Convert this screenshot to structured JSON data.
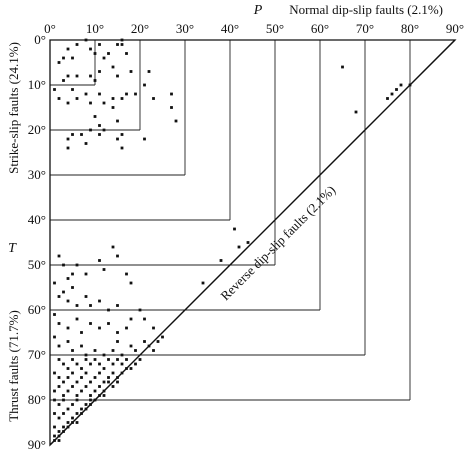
{
  "chart_data": {
    "type": "scatter",
    "x_axis": {
      "label": "P",
      "range": [
        0,
        90
      ],
      "ticks": [
        "0°",
        "10°",
        "20°",
        "30°",
        "40°",
        "50°",
        "60°",
        "70°",
        "80°",
        "90°"
      ]
    },
    "y_axis": {
      "label": "T",
      "range": [
        0,
        90
      ],
      "ticks": [
        "0°",
        "10°",
        "20°",
        "30°",
        "40°",
        "50°",
        "60°",
        "70°",
        "80°",
        "90°"
      ]
    },
    "grid": true,
    "region_labels": {
      "normal": "Normal dip-slip faults (2.1%)",
      "strike_slip": "Strike-slip faults (24.1%)",
      "thrust": "Thrust faults (71.7%)",
      "reverse": "Reverse dip-slip faults (2.1%)"
    },
    "marker_color": "#111111",
    "points": [
      [
        2,
        5
      ],
      [
        3,
        4
      ],
      [
        4,
        2
      ],
      [
        5,
        4
      ],
      [
        6,
        1
      ],
      [
        8,
        0
      ],
      [
        9,
        2
      ],
      [
        10,
        3
      ],
      [
        11,
        1
      ],
      [
        12,
        4
      ],
      [
        13,
        3
      ],
      [
        15,
        1
      ],
      [
        16,
        1
      ],
      [
        17,
        3
      ],
      [
        16,
        0
      ],
      [
        4,
        8
      ],
      [
        3,
        9
      ],
      [
        5,
        11
      ],
      [
        6,
        8
      ],
      [
        9,
        8
      ],
      [
        10,
        9
      ],
      [
        11,
        7
      ],
      [
        14,
        6
      ],
      [
        15,
        8
      ],
      [
        18,
        7
      ],
      [
        22,
        7
      ],
      [
        21,
        10
      ],
      [
        1,
        11
      ],
      [
        2,
        13
      ],
      [
        4,
        14
      ],
      [
        6,
        13
      ],
      [
        8,
        12
      ],
      [
        9,
        14
      ],
      [
        11,
        12
      ],
      [
        12,
        14
      ],
      [
        14,
        13
      ],
      [
        16,
        13
      ],
      [
        17,
        12
      ],
      [
        19,
        12
      ],
      [
        23,
        13
      ],
      [
        27,
        12
      ],
      [
        27,
        15
      ],
      [
        28,
        18
      ],
      [
        14,
        15
      ],
      [
        10,
        17
      ],
      [
        11,
        19
      ],
      [
        15,
        18
      ],
      [
        12,
        20
      ],
      [
        4,
        22
      ],
      [
        5,
        21
      ],
      [
        7,
        21
      ],
      [
        4,
        24
      ],
      [
        8,
        23
      ],
      [
        9,
        20
      ],
      [
        11,
        21
      ],
      [
        15,
        22
      ],
      [
        16,
        21
      ],
      [
        21,
        22
      ],
      [
        16,
        24
      ],
      [
        65,
        6
      ],
      [
        68,
        16
      ],
      [
        75,
        13
      ],
      [
        76,
        12
      ],
      [
        77,
        11
      ],
      [
        78,
        10
      ],
      [
        80,
        10
      ],
      [
        41,
        42
      ],
      [
        44,
        45
      ],
      [
        42,
        46
      ],
      [
        38,
        49
      ],
      [
        34,
        54
      ],
      [
        2,
        48
      ],
      [
        3,
        50
      ],
      [
        5,
        52
      ],
      [
        4,
        53
      ],
      [
        1,
        54
      ],
      [
        3,
        56
      ],
      [
        5,
        55
      ],
      [
        6,
        50
      ],
      [
        8,
        52
      ],
      [
        11,
        49
      ],
      [
        12,
        51
      ],
      [
        14,
        46
      ],
      [
        15,
        48
      ],
      [
        17,
        52
      ],
      [
        18,
        54
      ],
      [
        2,
        57
      ],
      [
        4,
        58
      ],
      [
        6,
        59
      ],
      [
        8,
        57
      ],
      [
        9,
        59
      ],
      [
        11,
        58
      ],
      [
        13,
        60
      ],
      [
        15,
        59
      ],
      [
        18,
        62
      ],
      [
        1,
        61
      ],
      [
        2,
        63
      ],
      [
        4,
        64
      ],
      [
        6,
        62
      ],
      [
        7,
        65
      ],
      [
        9,
        63
      ],
      [
        11,
        64
      ],
      [
        13,
        63
      ],
      [
        15,
        65
      ],
      [
        17,
        64
      ],
      [
        20,
        60
      ],
      [
        21,
        62
      ],
      [
        23,
        64
      ],
      [
        25,
        66
      ],
      [
        1,
        66
      ],
      [
        2,
        68
      ],
      [
        4,
        67
      ],
      [
        5,
        69
      ],
      [
        7,
        68
      ],
      [
        8,
        70
      ],
      [
        10,
        69
      ],
      [
        12,
        70
      ],
      [
        14,
        69
      ],
      [
        15,
        67
      ],
      [
        16,
        70
      ],
      [
        18,
        68
      ],
      [
        19,
        69
      ],
      [
        21,
        67
      ],
      [
        22,
        68
      ],
      [
        24,
        67
      ],
      [
        23,
        69
      ],
      [
        2,
        71
      ],
      [
        3,
        72
      ],
      [
        4,
        73
      ],
      [
        5,
        71
      ],
      [
        6,
        72
      ],
      [
        7,
        73
      ],
      [
        8,
        71
      ],
      [
        9,
        72
      ],
      [
        10,
        71
      ],
      [
        11,
        72
      ],
      [
        12,
        73
      ],
      [
        13,
        71
      ],
      [
        14,
        72
      ],
      [
        15,
        71
      ],
      [
        16,
        72
      ],
      [
        17,
        71
      ],
      [
        18,
        73
      ],
      [
        19,
        72
      ],
      [
        20,
        71
      ],
      [
        1,
        74
      ],
      [
        2,
        75
      ],
      [
        3,
        76
      ],
      [
        4,
        75
      ],
      [
        5,
        74
      ],
      [
        6,
        76
      ],
      [
        7,
        75
      ],
      [
        8,
        74
      ],
      [
        9,
        76
      ],
      [
        10,
        75
      ],
      [
        11,
        74
      ],
      [
        12,
        76
      ],
      [
        13,
        75
      ],
      [
        14,
        74
      ],
      [
        15,
        75
      ],
      [
        16,
        74
      ],
      [
        17,
        73
      ],
      [
        1,
        78
      ],
      [
        2,
        77
      ],
      [
        3,
        79
      ],
      [
        4,
        78
      ],
      [
        5,
        77
      ],
      [
        6,
        79
      ],
      [
        7,
        78
      ],
      [
        8,
        77
      ],
      [
        9,
        79
      ],
      [
        10,
        78
      ],
      [
        11,
        77
      ],
      [
        12,
        78
      ],
      [
        13,
        76
      ],
      [
        14,
        77
      ],
      [
        15,
        76
      ],
      [
        1,
        80
      ],
      [
        2,
        81
      ],
      [
        3,
        80
      ],
      [
        4,
        82
      ],
      [
        5,
        81
      ],
      [
        6,
        80
      ],
      [
        7,
        82
      ],
      [
        8,
        81
      ],
      [
        9,
        80
      ],
      [
        10,
        80
      ],
      [
        11,
        79
      ],
      [
        12,
        79
      ],
      [
        1,
        83
      ],
      [
        2,
        84
      ],
      [
        3,
        83
      ],
      [
        4,
        85
      ],
      [
        5,
        84
      ],
      [
        6,
        83
      ],
      [
        7,
        83
      ],
      [
        8,
        82
      ],
      [
        9,
        81
      ],
      [
        1,
        86
      ],
      [
        2,
        87
      ],
      [
        3,
        86
      ],
      [
        4,
        86
      ],
      [
        5,
        85
      ],
      [
        6,
        85
      ],
      [
        1,
        88
      ],
      [
        2,
        88
      ],
      [
        3,
        87
      ],
      [
        1,
        89
      ],
      [
        2,
        89
      ]
    ]
  }
}
